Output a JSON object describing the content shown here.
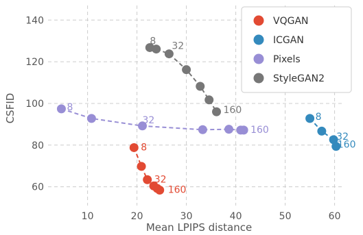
{
  "chart_data": {
    "type": "scatter",
    "xlabel": "Mean LPIPS distance",
    "ylabel": "CSFID",
    "xlim": [
      2,
      62
    ],
    "ylim": [
      51,
      147
    ],
    "xticks": [
      10,
      20,
      30,
      40,
      50,
      60
    ],
    "yticks": [
      60,
      80,
      100,
      120,
      140
    ],
    "grid": true,
    "legend": "top-right",
    "series": [
      {
        "name": "VQGAN",
        "color": "#E24A33",
        "points": [
          [
            19.4,
            78.8
          ],
          [
            20.9,
            69.8
          ],
          [
            22.1,
            63.4
          ],
          [
            23.4,
            60.4
          ],
          [
            24.1,
            59.2
          ],
          [
            24.6,
            58.4
          ]
        ],
        "annotations": [
          {
            "text": "8",
            "index": 0
          },
          {
            "text": "32",
            "index": 2
          },
          {
            "text": "160",
            "index": 5
          }
        ]
      },
      {
        "name": "ICGAN",
        "color": "#348ABD",
        "points": [
          [
            55.0,
            92.8
          ],
          [
            57.4,
            86.7
          ],
          [
            59.8,
            82.6
          ],
          [
            60.3,
            79.4
          ]
        ],
        "annotations": [
          {
            "text": "8",
            "index": 0
          },
          {
            "text": "32",
            "index": 2
          },
          {
            "text": "160",
            "index": 3
          }
        ]
      },
      {
        "name": "Pixels",
        "color": "#988ED5",
        "points": [
          [
            4.7,
            97.4
          ],
          [
            10.8,
            92.8
          ],
          [
            21.1,
            89.2
          ],
          [
            33.3,
            87.4
          ],
          [
            38.6,
            87.6
          ],
          [
            41.0,
            87.2
          ],
          [
            41.6,
            87.2
          ]
        ],
        "annotations": [
          {
            "text": "8",
            "index": 0
          },
          {
            "text": "32",
            "index": 2
          },
          {
            "text": "160",
            "index": 6
          }
        ]
      },
      {
        "name": "StyleGAN2",
        "color": "#777777",
        "points": [
          [
            22.6,
            126.8
          ],
          [
            23.9,
            126.1
          ],
          [
            26.5,
            123.8
          ],
          [
            30.0,
            116.2
          ],
          [
            32.8,
            108.2
          ],
          [
            34.6,
            101.7
          ],
          [
            36.1,
            96.0
          ]
        ],
        "annotations": [
          {
            "text": "8",
            "index": 0
          },
          {
            "text": "32",
            "index": 2
          },
          {
            "text": "160",
            "index": 6
          }
        ]
      }
    ]
  }
}
